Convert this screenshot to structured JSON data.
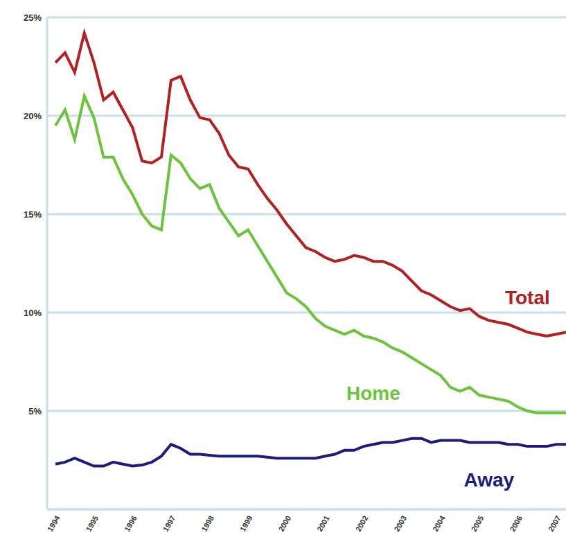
{
  "chart_data": {
    "type": "line",
    "categories": [
      "1994",
      null,
      null,
      null,
      "1995",
      null,
      null,
      null,
      "1996",
      null,
      null,
      null,
      "1997",
      null,
      null,
      null,
      "1998",
      null,
      null,
      null,
      "1999",
      null,
      null,
      null,
      "2000",
      null,
      null,
      null,
      "2001",
      null,
      null,
      null,
      "2002",
      null,
      null,
      null,
      "2003",
      null,
      null,
      null,
      "2004",
      null,
      null,
      null,
      "2005",
      null,
      null,
      null,
      "2006",
      null,
      null,
      null,
      "2007",
      null
    ],
    "series": [
      {
        "name": "Total",
        "color": "#b3201f",
        "values": [
          22.7,
          23.2,
          22.2,
          24.2,
          22.7,
          20.8,
          21.2,
          20.3,
          19.4,
          17.7,
          17.6,
          17.9,
          21.8,
          22.0,
          20.8,
          19.9,
          19.8,
          19.1,
          18.0,
          17.4,
          17.3,
          16.5,
          15.8,
          15.2,
          14.5,
          13.9,
          13.3,
          13.1,
          12.8,
          12.6,
          12.7,
          12.9,
          12.8,
          12.6,
          12.6,
          12.4,
          12.1,
          11.6,
          11.1,
          10.9,
          10.6,
          10.3,
          10.1,
          10.2,
          9.8,
          9.6,
          9.5,
          9.4,
          9.2,
          9.0,
          8.9,
          8.8,
          8.9,
          9.0
        ]
      },
      {
        "name": "Home",
        "color": "#6cc43a",
        "values": [
          19.5,
          20.3,
          18.8,
          21.0,
          19.9,
          17.9,
          17.9,
          16.8,
          16.0,
          15.0,
          14.4,
          14.2,
          18.0,
          17.6,
          16.8,
          16.3,
          16.5,
          15.3,
          14.6,
          13.9,
          14.2,
          13.4,
          12.6,
          11.8,
          11.0,
          10.7,
          10.3,
          9.7,
          9.3,
          9.1,
          8.9,
          9.1,
          8.8,
          8.7,
          8.5,
          8.2,
          8.0,
          7.7,
          7.4,
          7.1,
          6.8,
          6.2,
          6.0,
          6.2,
          5.8,
          5.7,
          5.6,
          5.5,
          5.2,
          5.0,
          4.9,
          4.9,
          4.9,
          4.9
        ]
      },
      {
        "name": "Away",
        "color": "#1c1c7e",
        "values": [
          2.3,
          2.4,
          2.6,
          2.4,
          2.2,
          2.2,
          2.4,
          2.3,
          2.2,
          2.25,
          2.4,
          2.7,
          3.3,
          3.1,
          2.8,
          2.8,
          2.75,
          2.7,
          2.7,
          2.7,
          2.7,
          2.7,
          2.65,
          2.6,
          2.6,
          2.6,
          2.6,
          2.6,
          2.7,
          2.8,
          3.0,
          3.0,
          3.2,
          3.3,
          3.4,
          3.4,
          3.5,
          3.6,
          3.6,
          3.4,
          3.5,
          3.5,
          3.5,
          3.4,
          3.4,
          3.4,
          3.4,
          3.3,
          3.3,
          3.2,
          3.2,
          3.2,
          3.3,
          3.3
        ]
      }
    ],
    "ylim": [
      0,
      25
    ],
    "yticks": [
      {
        "value": 5,
        "label": "5%"
      },
      {
        "value": 10,
        "label": "10%"
      },
      {
        "value": 15,
        "label": "15%"
      },
      {
        "value": 20,
        "label": "20%"
      },
      {
        "value": 25,
        "label": "25%"
      }
    ],
    "grid": true
  }
}
